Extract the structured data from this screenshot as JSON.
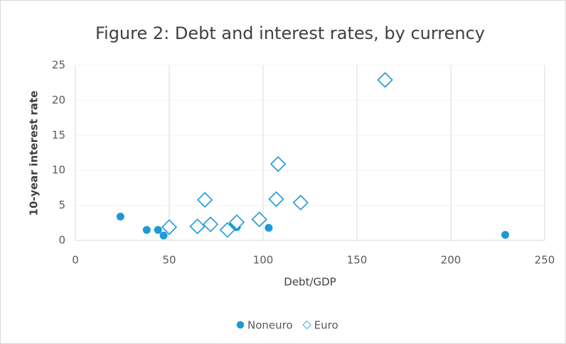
{
  "chart_data": {
    "type": "scatter",
    "title": "Figure 2: Debt and interest rates, by currency",
    "x_label": "Debt/GDP",
    "y_label": "10-year interest rate",
    "xlim": [
      0,
      250
    ],
    "xticks": [
      0,
      50,
      100,
      150,
      200,
      250
    ],
    "ylim": [
      0,
      25
    ],
    "yticks": [
      0,
      5,
      10,
      15,
      20,
      25
    ],
    "grid": true,
    "legend": "bottom",
    "series": [
      {
        "name": "Noneuro",
        "color": "#1b9ad7",
        "marker": "circle",
        "x": [
          24,
          38,
          44,
          47,
          50,
          82,
          86,
          103,
          229
        ],
        "values": [
          3.4,
          1.5,
          1.5,
          0.7,
          2.1,
          1.9,
          1.9,
          1.8,
          0.8
        ]
      },
      {
        "name": "Euro",
        "color": "#1b9ad7",
        "marker": "diamond",
        "x": [
          50,
          65,
          69,
          72,
          81,
          86,
          98,
          107,
          108,
          120,
          165
        ],
        "values": [
          1.9,
          2.0,
          5.8,
          2.3,
          1.5,
          2.6,
          3.0,
          5.9,
          10.9,
          5.4,
          22.9
        ]
      }
    ]
  }
}
